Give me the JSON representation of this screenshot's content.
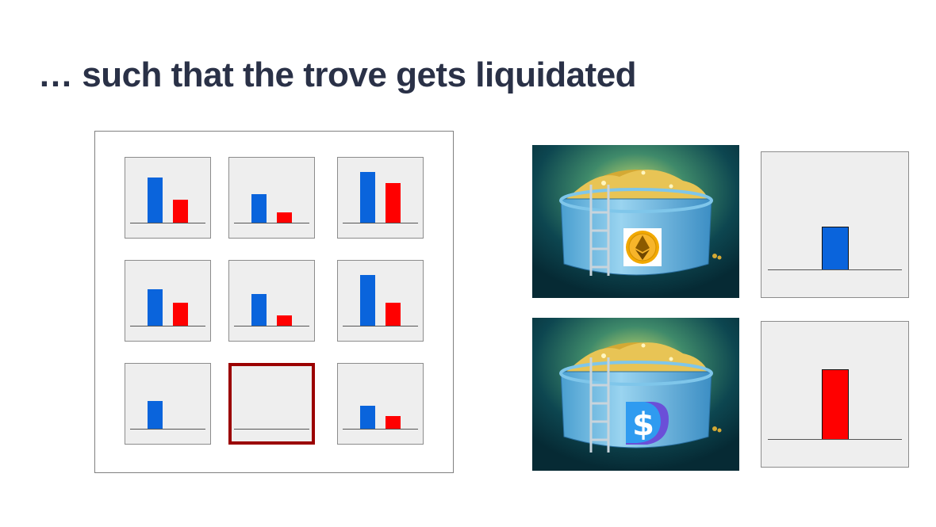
{
  "title": "… such that the trove gets liquidated",
  "colors": {
    "collateral": "#0a64dc",
    "debt": "#ff0000",
    "liquidated_border": "#9b0000"
  },
  "troves": [
    {
      "collateral": 0.68,
      "debt": 0.35
    },
    {
      "collateral": 0.43,
      "debt": 0.15
    },
    {
      "collateral": 0.76,
      "debt": 0.6
    },
    {
      "collateral": 0.55,
      "debt": 0.35
    },
    {
      "collateral": 0.48,
      "debt": 0.15
    },
    {
      "collateral": 0.76,
      "debt": 0.35
    },
    {
      "collateral": 0.42,
      "debt": 0.0
    },
    {
      "collateral": 0.0,
      "debt": 0.0,
      "liquidated": true
    },
    {
      "collateral": 0.34,
      "debt": 0.19
    }
  ],
  "pools": [
    {
      "token_icon": "ethereum-icon",
      "pool_total": 0.55
    },
    {
      "token_icon": "lusd-dollar-icon",
      "pool_total": 0.89
    }
  ]
}
